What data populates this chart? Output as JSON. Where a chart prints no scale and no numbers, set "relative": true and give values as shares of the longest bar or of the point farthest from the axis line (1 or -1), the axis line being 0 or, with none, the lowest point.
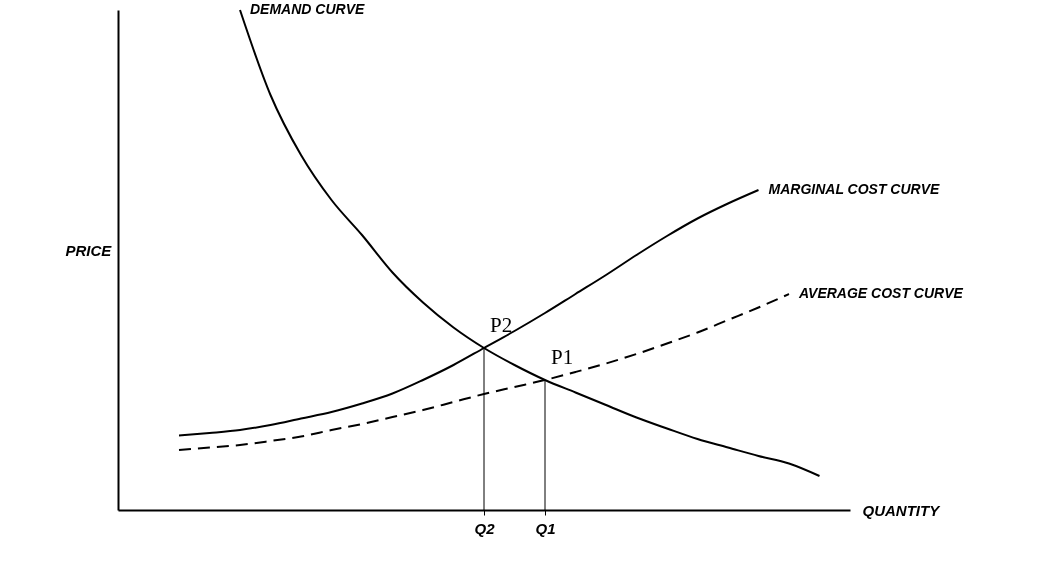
{
  "chart_data": {
    "type": "line",
    "relative": true,
    "xlabel": "QUANTITY",
    "ylabel": "PRICE",
    "categories": [
      null,
      null,
      null,
      null,
      null,
      null,
      null,
      null,
      null,
      null,
      null,
      null,
      "Q2",
      null,
      "Q1",
      null,
      null,
      null,
      null,
      null,
      null,
      null,
      null,
      null,
      null
    ],
    "grid": false,
    "series": [
      {
        "name": "DEMAND CURVE",
        "color": "#000000",
        "line_style": "solid",
        "values": [
          null,
          null,
          null,
          null,
          1.0,
          0.83,
          0.71,
          0.62,
          0.55,
          0.475,
          0.415,
          0.365,
          0.324,
          0.29,
          0.26,
          0.235,
          0.21,
          0.185,
          0.163,
          0.142,
          0.125,
          0.108,
          0.093,
          0.068,
          null
        ]
      },
      {
        "name": "MARGINAL COST CURVE",
        "color": "#000000",
        "line_style": "solid",
        "values": [
          null,
          null,
          0.149,
          0.154,
          0.16,
          0.17,
          0.183,
          0.196,
          0.213,
          0.233,
          0.26,
          0.29,
          0.324,
          0.358,
          0.394,
          0.432,
          0.47,
          0.51,
          0.548,
          0.583,
          0.613,
          0.64,
          null,
          null,
          null
        ]
      },
      {
        "name": "AVERAGE COST CURVE",
        "color": "#000000",
        "line_style": "dashed",
        "values": [
          null,
          null,
          0.12,
          0.125,
          0.13,
          0.138,
          0.147,
          0.16,
          0.172,
          0.186,
          0.2,
          0.216,
          0.232,
          0.246,
          0.26,
          0.276,
          0.293,
          0.312,
          0.333,
          0.355,
          0.38,
          0.405,
          0.432,
          null,
          null
        ]
      }
    ],
    "ref_lines": [
      {
        "axis": "x",
        "value": "Q2",
        "color": "#000000"
      },
      {
        "axis": "x",
        "value": "Q1",
        "color": "#000000"
      }
    ],
    "annotations": [
      {
        "text": "P2",
        "x": "Q2",
        "y": 0.324
      },
      {
        "text": "P1",
        "x": "Q1",
        "y": 0.26
      }
    ]
  }
}
